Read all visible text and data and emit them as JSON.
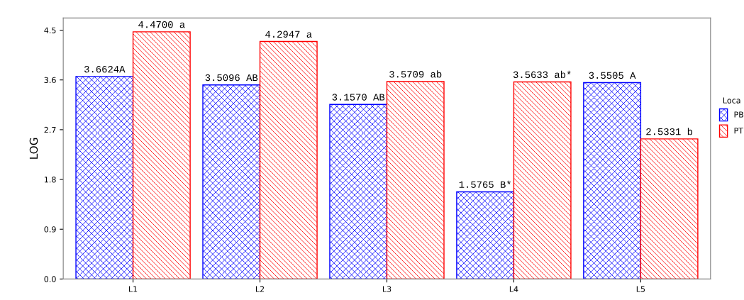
{
  "chart_data": {
    "type": "bar",
    "ylabel": "LOG",
    "legend_title": "Loca",
    "categories": [
      "L1",
      "L2",
      "L3",
      "L4",
      "L5"
    ],
    "series": [
      {
        "name": "PB",
        "color": "#0000ff",
        "values": [
          3.6624,
          3.5096,
          3.157,
          1.5765,
          3.5505
        ],
        "value_labels": [
          "3.6624A",
          "3.5096 AB",
          "3.1570 AB",
          "1.5765 B*",
          "3.5505 A"
        ]
      },
      {
        "name": "PT",
        "color": "#ff0000",
        "values": [
          4.47,
          4.2947,
          3.5709,
          3.5633,
          2.5331
        ],
        "value_labels": [
          "4.4700 a",
          "4.2947 a",
          "3.5709 ab",
          "3.5633 ab*",
          "2.5331 b"
        ]
      }
    ],
    "ylim": [
      0,
      4.72
    ],
    "yticks": [
      {
        "value": 0,
        "label": "0.0"
      },
      0.9,
      1.8,
      2.7,
      3.6,
      4.5
    ],
    "grid": false,
    "legend": "right"
  }
}
